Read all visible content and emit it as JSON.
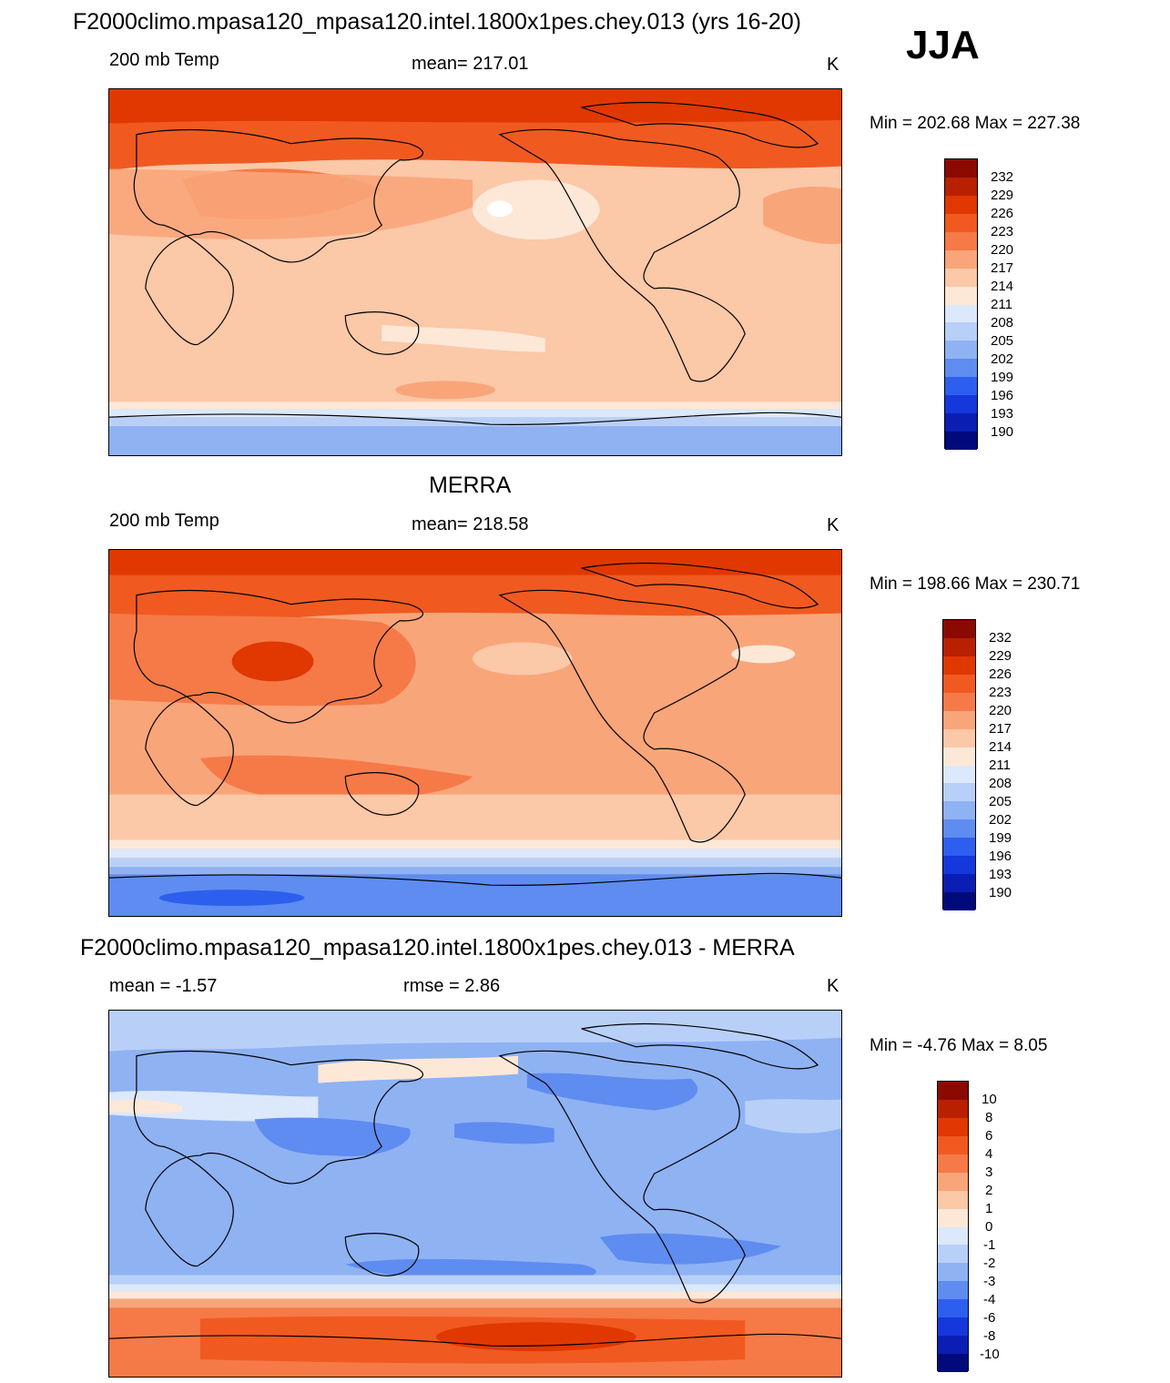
{
  "header": {
    "title": "F2000climo.mpasa120_mpasa120.intel.1800x1pes.chey.013 (yrs 16-20)",
    "season": "JJA"
  },
  "panels": [
    {
      "title": "",
      "left_label": "200 mb Temp",
      "center_label": "mean= 217.01",
      "units": "K",
      "minmax": "Min = 202.68 Max = 227.38",
      "colorbar_labels": [
        "232",
        "229",
        "226",
        "223",
        "220",
        "217",
        "214",
        "211",
        "208",
        "205",
        "202",
        "199",
        "196",
        "193",
        "190"
      ]
    },
    {
      "title": "MERRA",
      "left_label": "200 mb Temp",
      "center_label": "mean= 218.58",
      "units": "K",
      "minmax": "Min = 198.66 Max = 230.71",
      "colorbar_labels": [
        "232",
        "229",
        "226",
        "223",
        "220",
        "217",
        "214",
        "211",
        "208",
        "205",
        "202",
        "199",
        "196",
        "193",
        "190"
      ]
    },
    {
      "title": "F2000climo.mpasa120_mpasa120.intel.1800x1pes.chey.013 - MERRA",
      "left_label": "mean =  -1.57",
      "center_label": "rmse =   2.86",
      "units": "K",
      "minmax": "Min =  -4.76 Max =   8.05",
      "colorbar_labels": [
        "10",
        "8",
        "6",
        "4",
        "3",
        "2",
        "1",
        "0",
        "-1",
        "-2",
        "-3",
        "-4",
        "-6",
        "-8",
        "-10"
      ]
    }
  ],
  "colors": {
    "scale_top_to_bottom": [
      "#8b0a00",
      "#b82000",
      "#e03800",
      "#f05a20",
      "#f57a48",
      "#f9a57a",
      "#fbc8a8",
      "#fde8d8",
      "#dce8fb",
      "#b8d0f8",
      "#8fb2f3",
      "#5f8cf0",
      "#2d5fee",
      "#1438dc",
      "#0a1eb4",
      "#000a7a"
    ]
  }
}
